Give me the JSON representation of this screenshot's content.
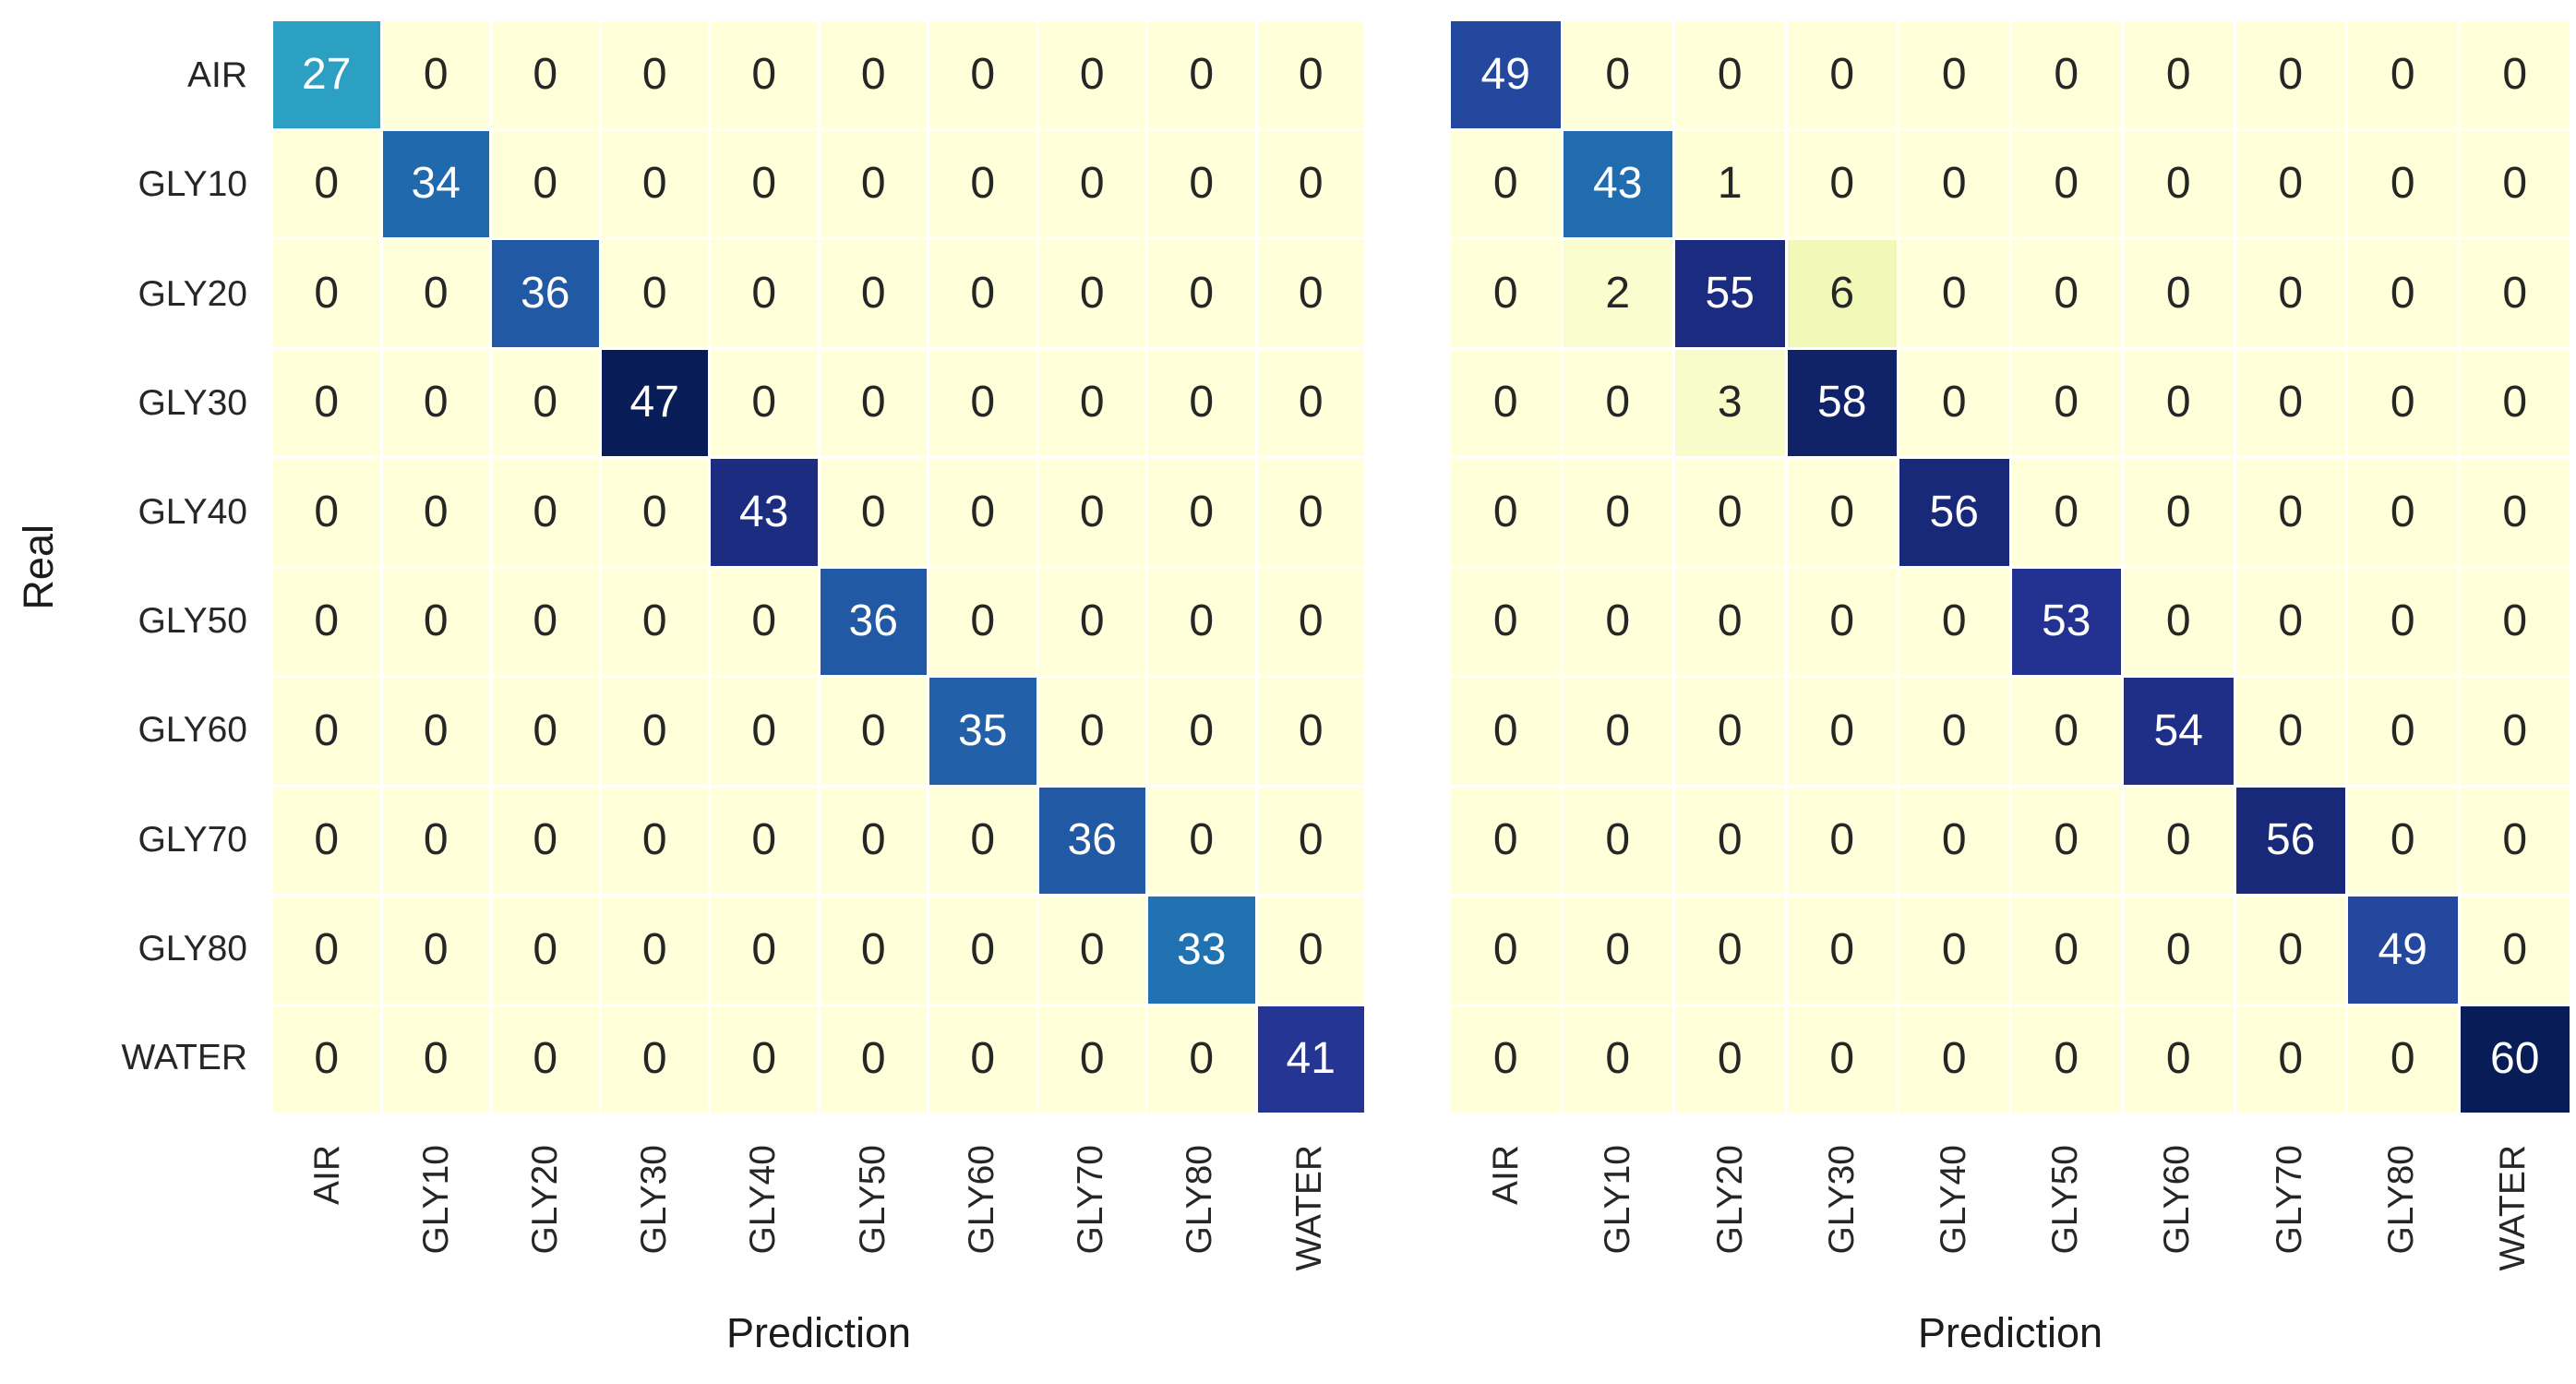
{
  "axes": {
    "x_label": "Prediction",
    "y_label": "Real"
  },
  "classes": [
    "AIR",
    "GLY10",
    "GLY20",
    "GLY30",
    "GLY40",
    "GLY50",
    "GLY60",
    "GLY70",
    "GLY80",
    "WATER"
  ],
  "colors": {
    "background": "#ffffff",
    "grid_line": "#ffffff",
    "annot_dark": "#262626",
    "annot_light": "#ffffff",
    "tick_label": "#262626",
    "axis_label": "#1c1c1c",
    "colormap_name": "YlGnBu",
    "colormap_stops": [
      [
        0.0,
        "#ffffd9"
      ],
      [
        0.125,
        "#edf8b1"
      ],
      [
        0.25,
        "#c7e9b4"
      ],
      [
        0.375,
        "#7fcdbb"
      ],
      [
        0.5,
        "#41b6c4"
      ],
      [
        0.625,
        "#1d91c0"
      ],
      [
        0.75,
        "#225ea8"
      ],
      [
        0.875,
        "#253494"
      ],
      [
        1.0,
        "#081d58"
      ]
    ]
  },
  "chart_data": [
    {
      "type": "heatmap",
      "panel": "left",
      "name": "left-confusion-matrix",
      "xlabel": "Prediction",
      "ylabel": "Real",
      "show_y_ticks": true,
      "x_categories": [
        "AIR",
        "GLY10",
        "GLY20",
        "GLY30",
        "GLY40",
        "GLY50",
        "GLY60",
        "GLY70",
        "GLY80",
        "WATER"
      ],
      "y_categories": [
        "AIR",
        "GLY10",
        "GLY20",
        "GLY30",
        "GLY40",
        "GLY50",
        "GLY60",
        "GLY70",
        "GLY80",
        "WATER"
      ],
      "vmin": 0,
      "vmax": 47,
      "values": [
        [
          27,
          0,
          0,
          0,
          0,
          0,
          0,
          0,
          0,
          0
        ],
        [
          0,
          34,
          0,
          0,
          0,
          0,
          0,
          0,
          0,
          0
        ],
        [
          0,
          0,
          36,
          0,
          0,
          0,
          0,
          0,
          0,
          0
        ],
        [
          0,
          0,
          0,
          47,
          0,
          0,
          0,
          0,
          0,
          0
        ],
        [
          0,
          0,
          0,
          0,
          43,
          0,
          0,
          0,
          0,
          0
        ],
        [
          0,
          0,
          0,
          0,
          0,
          36,
          0,
          0,
          0,
          0
        ],
        [
          0,
          0,
          0,
          0,
          0,
          0,
          35,
          0,
          0,
          0
        ],
        [
          0,
          0,
          0,
          0,
          0,
          0,
          0,
          36,
          0,
          0
        ],
        [
          0,
          0,
          0,
          0,
          0,
          0,
          0,
          0,
          33,
          0
        ],
        [
          0,
          0,
          0,
          0,
          0,
          0,
          0,
          0,
          0,
          41
        ]
      ]
    },
    {
      "type": "heatmap",
      "panel": "right",
      "name": "right-confusion-matrix",
      "xlabel": "Prediction",
      "ylabel": "",
      "show_y_ticks": false,
      "x_categories": [
        "AIR",
        "GLY10",
        "GLY20",
        "GLY30",
        "GLY40",
        "GLY50",
        "GLY60",
        "GLY70",
        "GLY80",
        "WATER"
      ],
      "y_categories": [
        "AIR",
        "GLY10",
        "GLY20",
        "GLY30",
        "GLY40",
        "GLY50",
        "GLY60",
        "GLY70",
        "GLY80",
        "WATER"
      ],
      "vmin": 0,
      "vmax": 60,
      "values": [
        [
          49,
          0,
          0,
          0,
          0,
          0,
          0,
          0,
          0,
          0
        ],
        [
          0,
          43,
          1,
          0,
          0,
          0,
          0,
          0,
          0,
          0
        ],
        [
          0,
          2,
          55,
          6,
          0,
          0,
          0,
          0,
          0,
          0
        ],
        [
          0,
          0,
          3,
          58,
          0,
          0,
          0,
          0,
          0,
          0
        ],
        [
          0,
          0,
          0,
          0,
          56,
          0,
          0,
          0,
          0,
          0
        ],
        [
          0,
          0,
          0,
          0,
          0,
          53,
          0,
          0,
          0,
          0
        ],
        [
          0,
          0,
          0,
          0,
          0,
          0,
          54,
          0,
          0,
          0
        ],
        [
          0,
          0,
          0,
          0,
          0,
          0,
          0,
          56,
          0,
          0
        ],
        [
          0,
          0,
          0,
          0,
          0,
          0,
          0,
          0,
          49,
          0
        ],
        [
          0,
          0,
          0,
          0,
          0,
          0,
          0,
          0,
          0,
          60
        ]
      ]
    }
  ]
}
